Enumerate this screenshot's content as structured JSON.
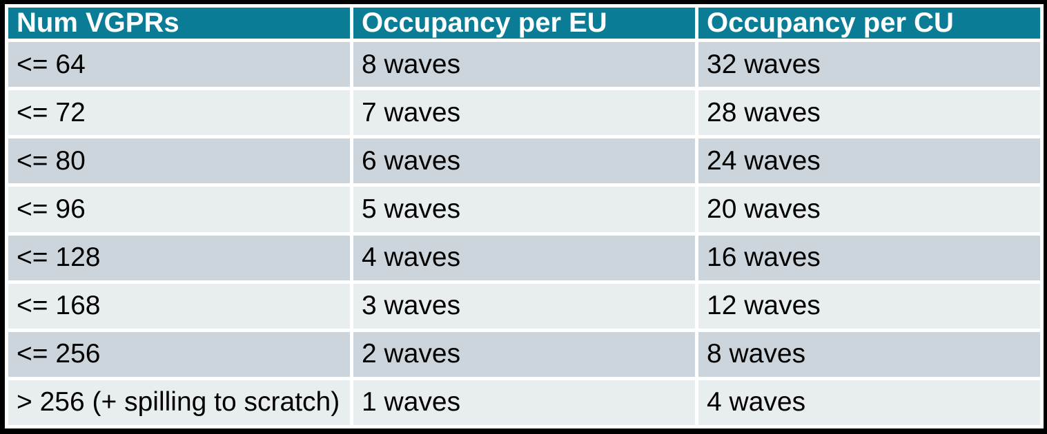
{
  "chart_data": {
    "type": "table",
    "columns": [
      "Num VGPRs",
      "Occupancy per EU",
      "Occupancy per CU"
    ],
    "rows": [
      [
        "<= 64",
        "8 waves",
        "32 waves"
      ],
      [
        "<= 72",
        "7 waves",
        "28 waves"
      ],
      [
        "<= 80",
        "6 waves",
        "24 waves"
      ],
      [
        "<= 96",
        "5 waves",
        "20 waves"
      ],
      [
        "<= 128",
        "4 waves",
        "16 waves"
      ],
      [
        "<= 168",
        "3 waves",
        "12 waves"
      ],
      [
        "<= 256",
        "2 waves",
        "8 waves"
      ],
      [
        "> 256 (+ spilling to scratch)",
        "1 waves",
        "4 waves"
      ]
    ]
  },
  "style": {
    "colors": {
      "header_bg": "#0a7c96",
      "header_text": "#ffffff",
      "row_dark_bg": "#ccd5dc",
      "row_light_bg": "#e8edf0",
      "separator": "#ffffff",
      "frame": "#000000",
      "body_text": "#000000"
    }
  }
}
